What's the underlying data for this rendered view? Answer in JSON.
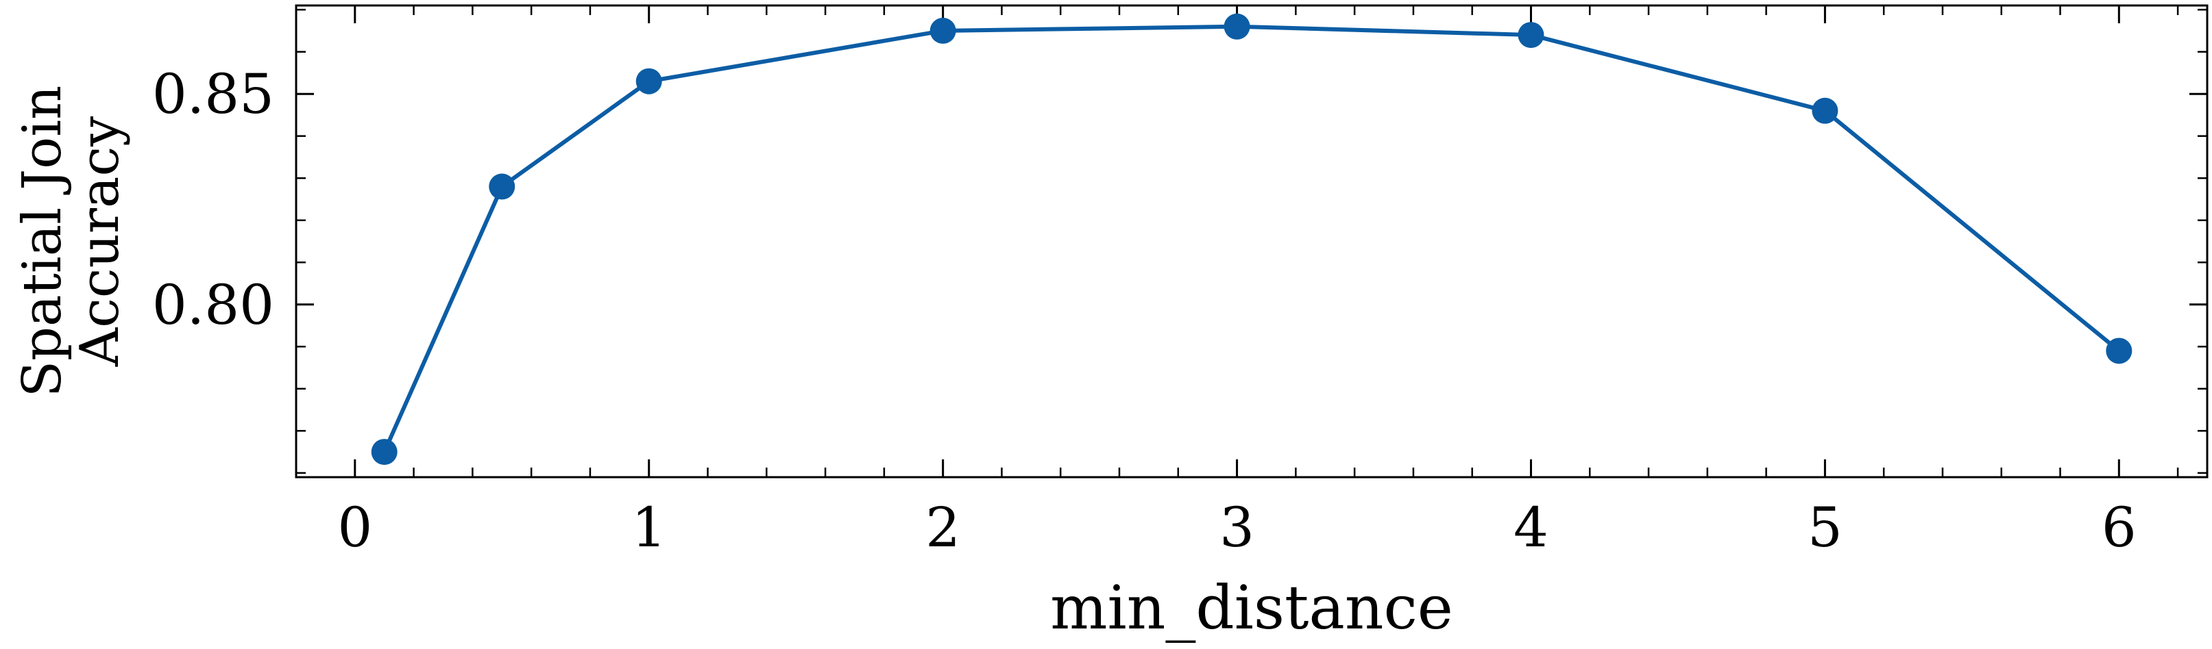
{
  "chart_data": {
    "type": "line",
    "xlabel": "min_distance",
    "ylabel": [
      "Spatial Join",
      "Accuracy"
    ],
    "xlim": [
      -0.2,
      6.3
    ],
    "ylim": [
      0.759,
      0.871
    ],
    "xticks": [
      0,
      1,
      2,
      3,
      4,
      5,
      6
    ],
    "xtick_labels": [
      "0",
      "1",
      "2",
      "3",
      "4",
      "5",
      "6"
    ],
    "yticks": [
      0.8,
      0.85
    ],
    "ytick_labels": [
      "0.80",
      "0.85"
    ],
    "x_minor_step": 0.2,
    "y_minor_step": 0.01,
    "grid": false,
    "series": [
      {
        "color": "#0C5DA5",
        "x": [
          0.1,
          0.5,
          1,
          2,
          3,
          4,
          5,
          6
        ],
        "y": [
          0.765,
          0.828,
          0.853,
          0.865,
          0.866,
          0.864,
          0.846,
          0.789
        ]
      }
    ]
  }
}
